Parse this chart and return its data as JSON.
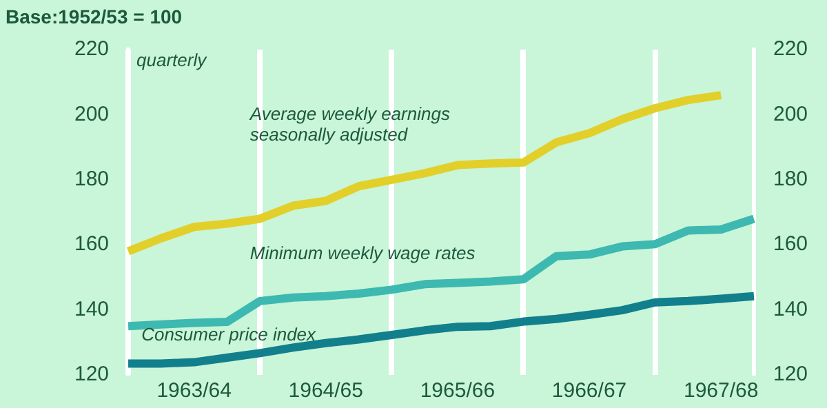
{
  "chart_data": {
    "type": "line",
    "title": "Base:1952/53 = 100",
    "annotations": [
      "quarterly"
    ],
    "categories": [
      null,
      null,
      "1963/64",
      null,
      null,
      null,
      "1964/65",
      null,
      null,
      null,
      "1965/66",
      null,
      null,
      null,
      "1966/67",
      null,
      null,
      null,
      "1967/68",
      null
    ],
    "ylim": [
      120,
      220
    ],
    "yticks": [
      120,
      140,
      160,
      180,
      200,
      220
    ],
    "y2lim": [
      120,
      220
    ],
    "y2ticks": [
      120,
      140,
      160,
      180,
      200,
      220
    ],
    "grid": "x",
    "legend": false,
    "marker": "none",
    "line_style": "solid",
    "series": [
      {
        "name": "Average weekly earnings seasonally adjusted",
        "color": "#e2cf2a",
        "values": [
          158,
          162,
          165.5,
          166.5,
          168,
          172,
          173.5,
          178,
          180,
          182,
          184.5,
          185,
          185.3,
          191.5,
          194.3,
          198.6,
          202,
          204.5,
          206,
          null
        ]
      },
      {
        "name": "Minimum weekly wage rates",
        "color": "#3db9b1",
        "values": [
          135,
          135.5,
          136,
          136.3,
          142.7,
          143.8,
          144.2,
          145,
          146.2,
          147.9,
          148.3,
          148.7,
          149.4,
          156.5,
          157,
          159.5,
          160.2,
          164.4,
          164.7,
          168
        ]
      },
      {
        "name": "Consumer price index",
        "color": "#127f8d",
        "values": [
          123.5,
          123.5,
          123.9,
          125.3,
          126.7,
          128.4,
          129.8,
          130.9,
          132.3,
          133.7,
          134.8,
          135,
          136.4,
          137.2,
          138.5,
          139.9,
          142.3,
          142.7,
          143.4,
          144.2
        ]
      }
    ]
  }
}
